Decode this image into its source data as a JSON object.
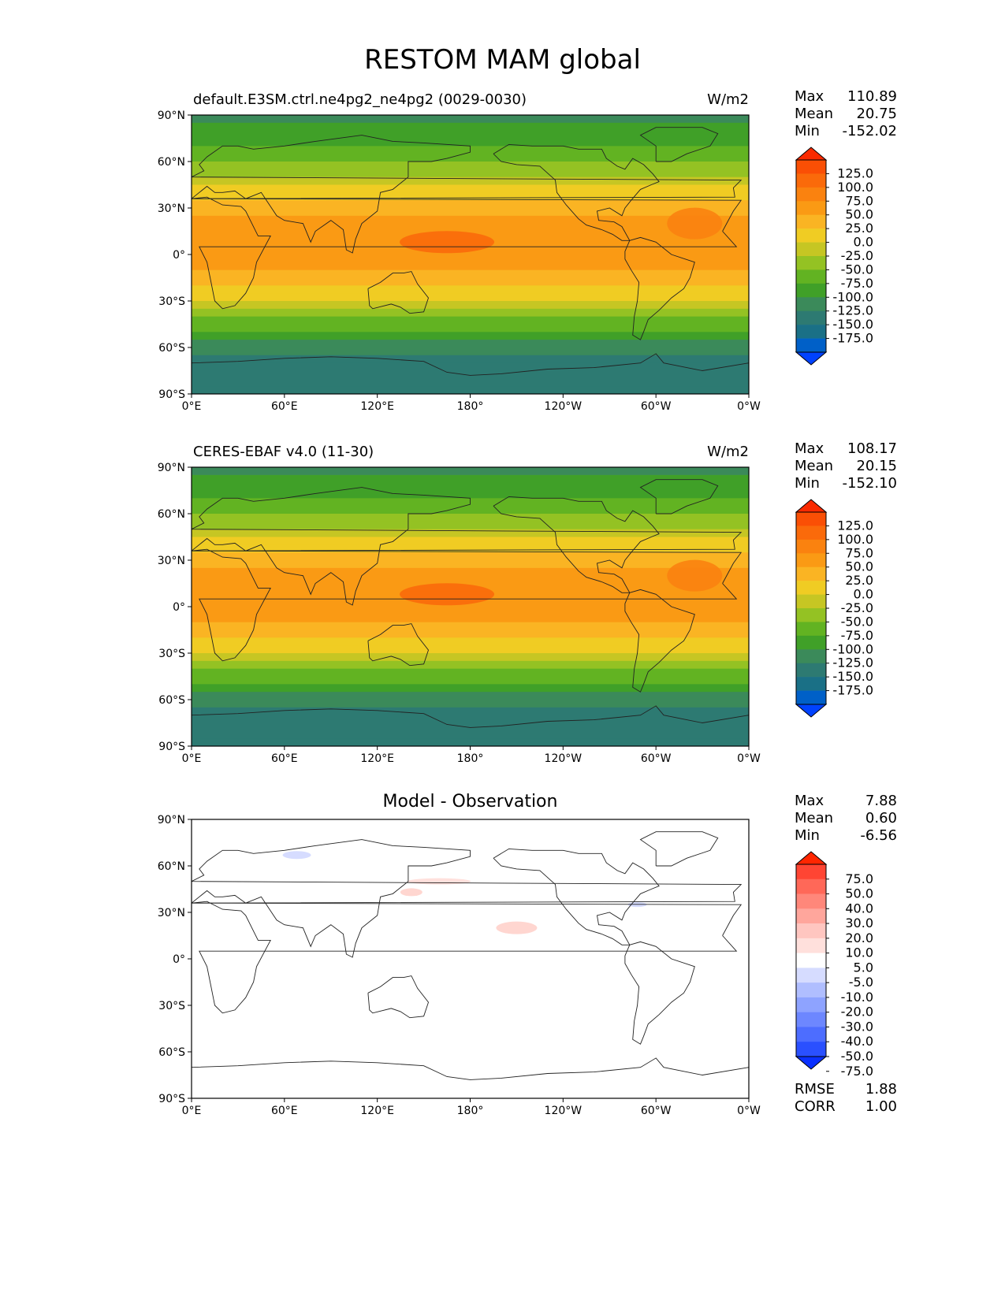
{
  "title": "RESTOM MAM global",
  "lat_labels": [
    "90°N",
    "60°N",
    "30°N",
    "0°",
    "30°S",
    "60°S",
    "90°S"
  ],
  "lon_labels": [
    "0°E",
    "60°E",
    "120°E",
    "180°",
    "120°W",
    "60°W",
    "0°W"
  ],
  "palette_main": [
    "#0042ff",
    "#0060c8",
    "#1a7086",
    "#2d7a72",
    "#3b8a5a",
    "#40a028",
    "#62b322",
    "#94c223",
    "#c6c623",
    "#f0cc23",
    "#fab423",
    "#fa9a14",
    "#fa820f",
    "#fa6a0a",
    "#fa4f05",
    "#fa2a00"
  ],
  "palette_diff": [
    "#0a30ff",
    "#2a50ff",
    "#4d6dff",
    "#6d87ff",
    "#8ea3ff",
    "#b0beff",
    "#d6dcff",
    "#ffffff",
    "#ffe0dc",
    "#ffc6c0",
    "#ffa69c",
    "#ff877a",
    "#ff6858",
    "#ff4533",
    "#ff2600"
  ],
  "panels": [
    {
      "id": "model",
      "title": "default.E3SM.ctrl.ne4pg2_ne4pg2 (0029-0030)",
      "units": "W/m2",
      "stats": {
        "max_label": "Max",
        "max": "110.89",
        "mean_label": "Mean",
        "mean": "20.75",
        "min_label": "Min",
        "min": "-152.02"
      },
      "colorbar_ticks": [
        "125.0",
        "100.0",
        "75.0",
        "50.0",
        "25.0",
        "0.0",
        "-25.0",
        "-50.0",
        "-75.0",
        "-100.0",
        "-125.0",
        "-150.0",
        "-175.0"
      ]
    },
    {
      "id": "obs",
      "title": "CERES-EBAF v4.0 (11-30)",
      "units": "W/m2",
      "stats": {
        "max_label": "Max",
        "max": "108.17",
        "mean_label": "Mean",
        "mean": "20.15",
        "min_label": "Min",
        "min": "-152.10"
      },
      "colorbar_ticks": [
        "125.0",
        "100.0",
        "75.0",
        "50.0",
        "25.0",
        "0.0",
        "-25.0",
        "-50.0",
        "-75.0",
        "-100.0",
        "-125.0",
        "-150.0",
        "-175.0"
      ]
    },
    {
      "id": "diff",
      "title": "Model - Observation",
      "units": "",
      "stats": {
        "max_label": "Max",
        "max": "7.88",
        "mean_label": "Mean",
        "mean": "0.60",
        "min_label": "Min",
        "min": "-6.56"
      },
      "colorbar_ticks": [
        "75.0",
        "50.0",
        "40.0",
        "30.0",
        "20.0",
        "10.0",
        "5.0",
        "-5.0",
        "-10.0",
        "-20.0",
        "-30.0",
        "-40.0",
        "-50.0",
        "-75.0"
      ],
      "extra": {
        "rmse_label": "RMSE",
        "rmse": "1.88",
        "corr_label": "CORR",
        "corr": "1.00"
      }
    }
  ],
  "chart_data": {
    "type": "heatmap",
    "title": "RESTOM MAM global",
    "units": "W/m2",
    "lat_range": [
      -90,
      90
    ],
    "lon_range": [
      0,
      360
    ],
    "zonal_profile_lat": [
      -90,
      -75,
      -60,
      -45,
      -30,
      -15,
      0,
      15,
      30,
      45,
      60,
      75,
      90
    ],
    "zonal_profile_model": [
      -110,
      -125,
      -95,
      -40,
      20,
      65,
      85,
      90,
      60,
      20,
      -25,
      -70,
      -80
    ],
    "zonal_profile_obs": [
      -110,
      -125,
      -95,
      -40,
      20,
      65,
      85,
      90,
      60,
      20,
      -25,
      -70,
      -80
    ],
    "diff_zonal_profile": [
      0,
      0,
      0,
      0,
      0,
      0,
      0,
      0,
      0,
      0,
      0,
      0,
      0
    ]
  }
}
